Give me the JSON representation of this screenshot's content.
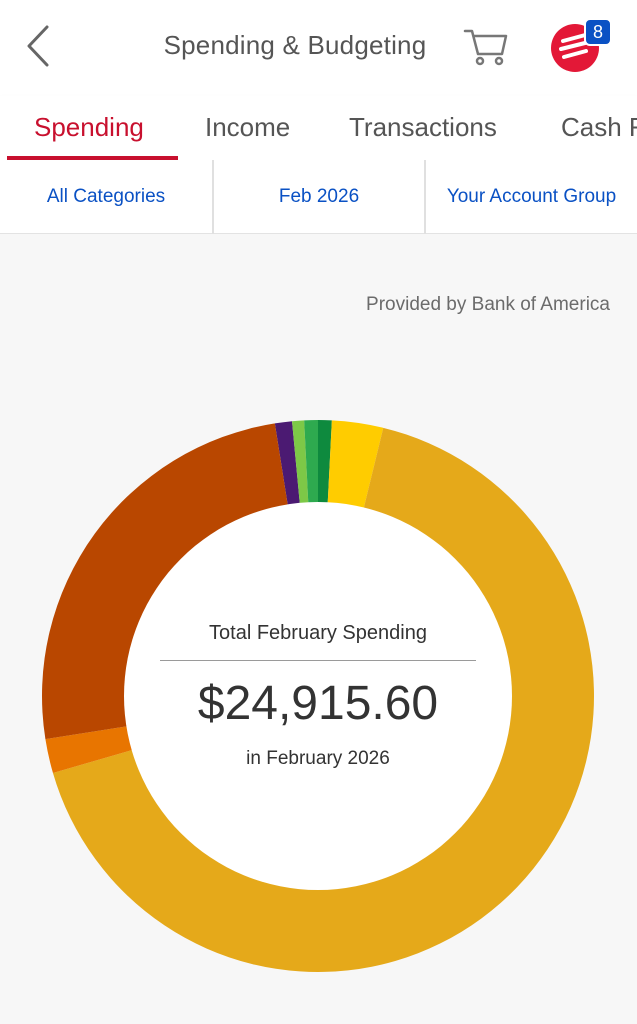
{
  "header": {
    "title": "Spending & Budgeting",
    "notification_count": "8"
  },
  "tabs": [
    {
      "label": "Spending",
      "active": true
    },
    {
      "label": "Income",
      "active": false
    },
    {
      "label": "Transactions",
      "active": false
    },
    {
      "label": "Cash F",
      "active": false
    }
  ],
  "filters": {
    "category": "All Categories",
    "period": "Feb 2026",
    "account_group": "Your Account Group"
  },
  "provided_by": "Provided by Bank of America",
  "summary": {
    "label": "Total February Spending",
    "amount": "$24,915.60",
    "period": "in February 2026"
  },
  "chart_data": {
    "type": "pie",
    "variant": "donut",
    "segments": [
      {
        "share": 0.01,
        "color": "#4b1a72"
      },
      {
        "share": 0.007,
        "color": "#7dc847"
      },
      {
        "share": 0.008,
        "color": "#2eaa4f"
      },
      {
        "share": 0.008,
        "color": "#0e8a3e"
      },
      {
        "share": 0.03,
        "color": "#ffcc00"
      },
      {
        "share": 0.667,
        "color": "#e5a91a"
      },
      {
        "share": 0.02,
        "color": "#e87500"
      },
      {
        "share": 0.25,
        "color": "#b94700"
      }
    ]
  },
  "colors": {
    "brand_red": "#e31837",
    "accent_blue": "#0a51c4"
  }
}
